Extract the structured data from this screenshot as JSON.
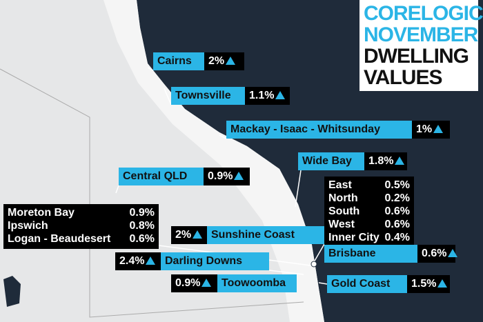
{
  "title": {
    "line1": "CORELOGIC",
    "line2": "NOVEMBER",
    "line3": "DWELLING",
    "line4": "VALUES"
  },
  "regions": [
    {
      "name": "Cairns",
      "change": "2%"
    },
    {
      "name": "Townsville",
      "change": "1.1%"
    },
    {
      "name": "Mackay - Isaac - Whitsunday",
      "change": "1%"
    },
    {
      "name": "Wide Bay",
      "change": "1.8%"
    },
    {
      "name": "Central QLD",
      "change": "0.9%"
    },
    {
      "name": "Sunshine Coast",
      "change": "2%"
    },
    {
      "name": "Darling Downs",
      "change": "2.4%"
    },
    {
      "name": "Toowoomba",
      "change": "0.9%"
    },
    {
      "name": "Gold Coast",
      "change": "1.5%"
    }
  ],
  "brisbane": {
    "name": "Brisbane",
    "change": "0.6%",
    "rows": [
      [
        "East",
        "0.5%"
      ],
      [
        "North",
        "0.2%"
      ],
      [
        "South",
        "0.6%"
      ],
      [
        "West",
        "0.6%"
      ],
      [
        "Inner City",
        "0.4%"
      ]
    ]
  },
  "moreton_group": {
    "rows": [
      [
        "Moreton Bay",
        "0.9%"
      ],
      [
        "Ipswich",
        "0.8%"
      ],
      [
        "Logan - Beaudesert",
        "0.6%"
      ]
    ]
  }
}
